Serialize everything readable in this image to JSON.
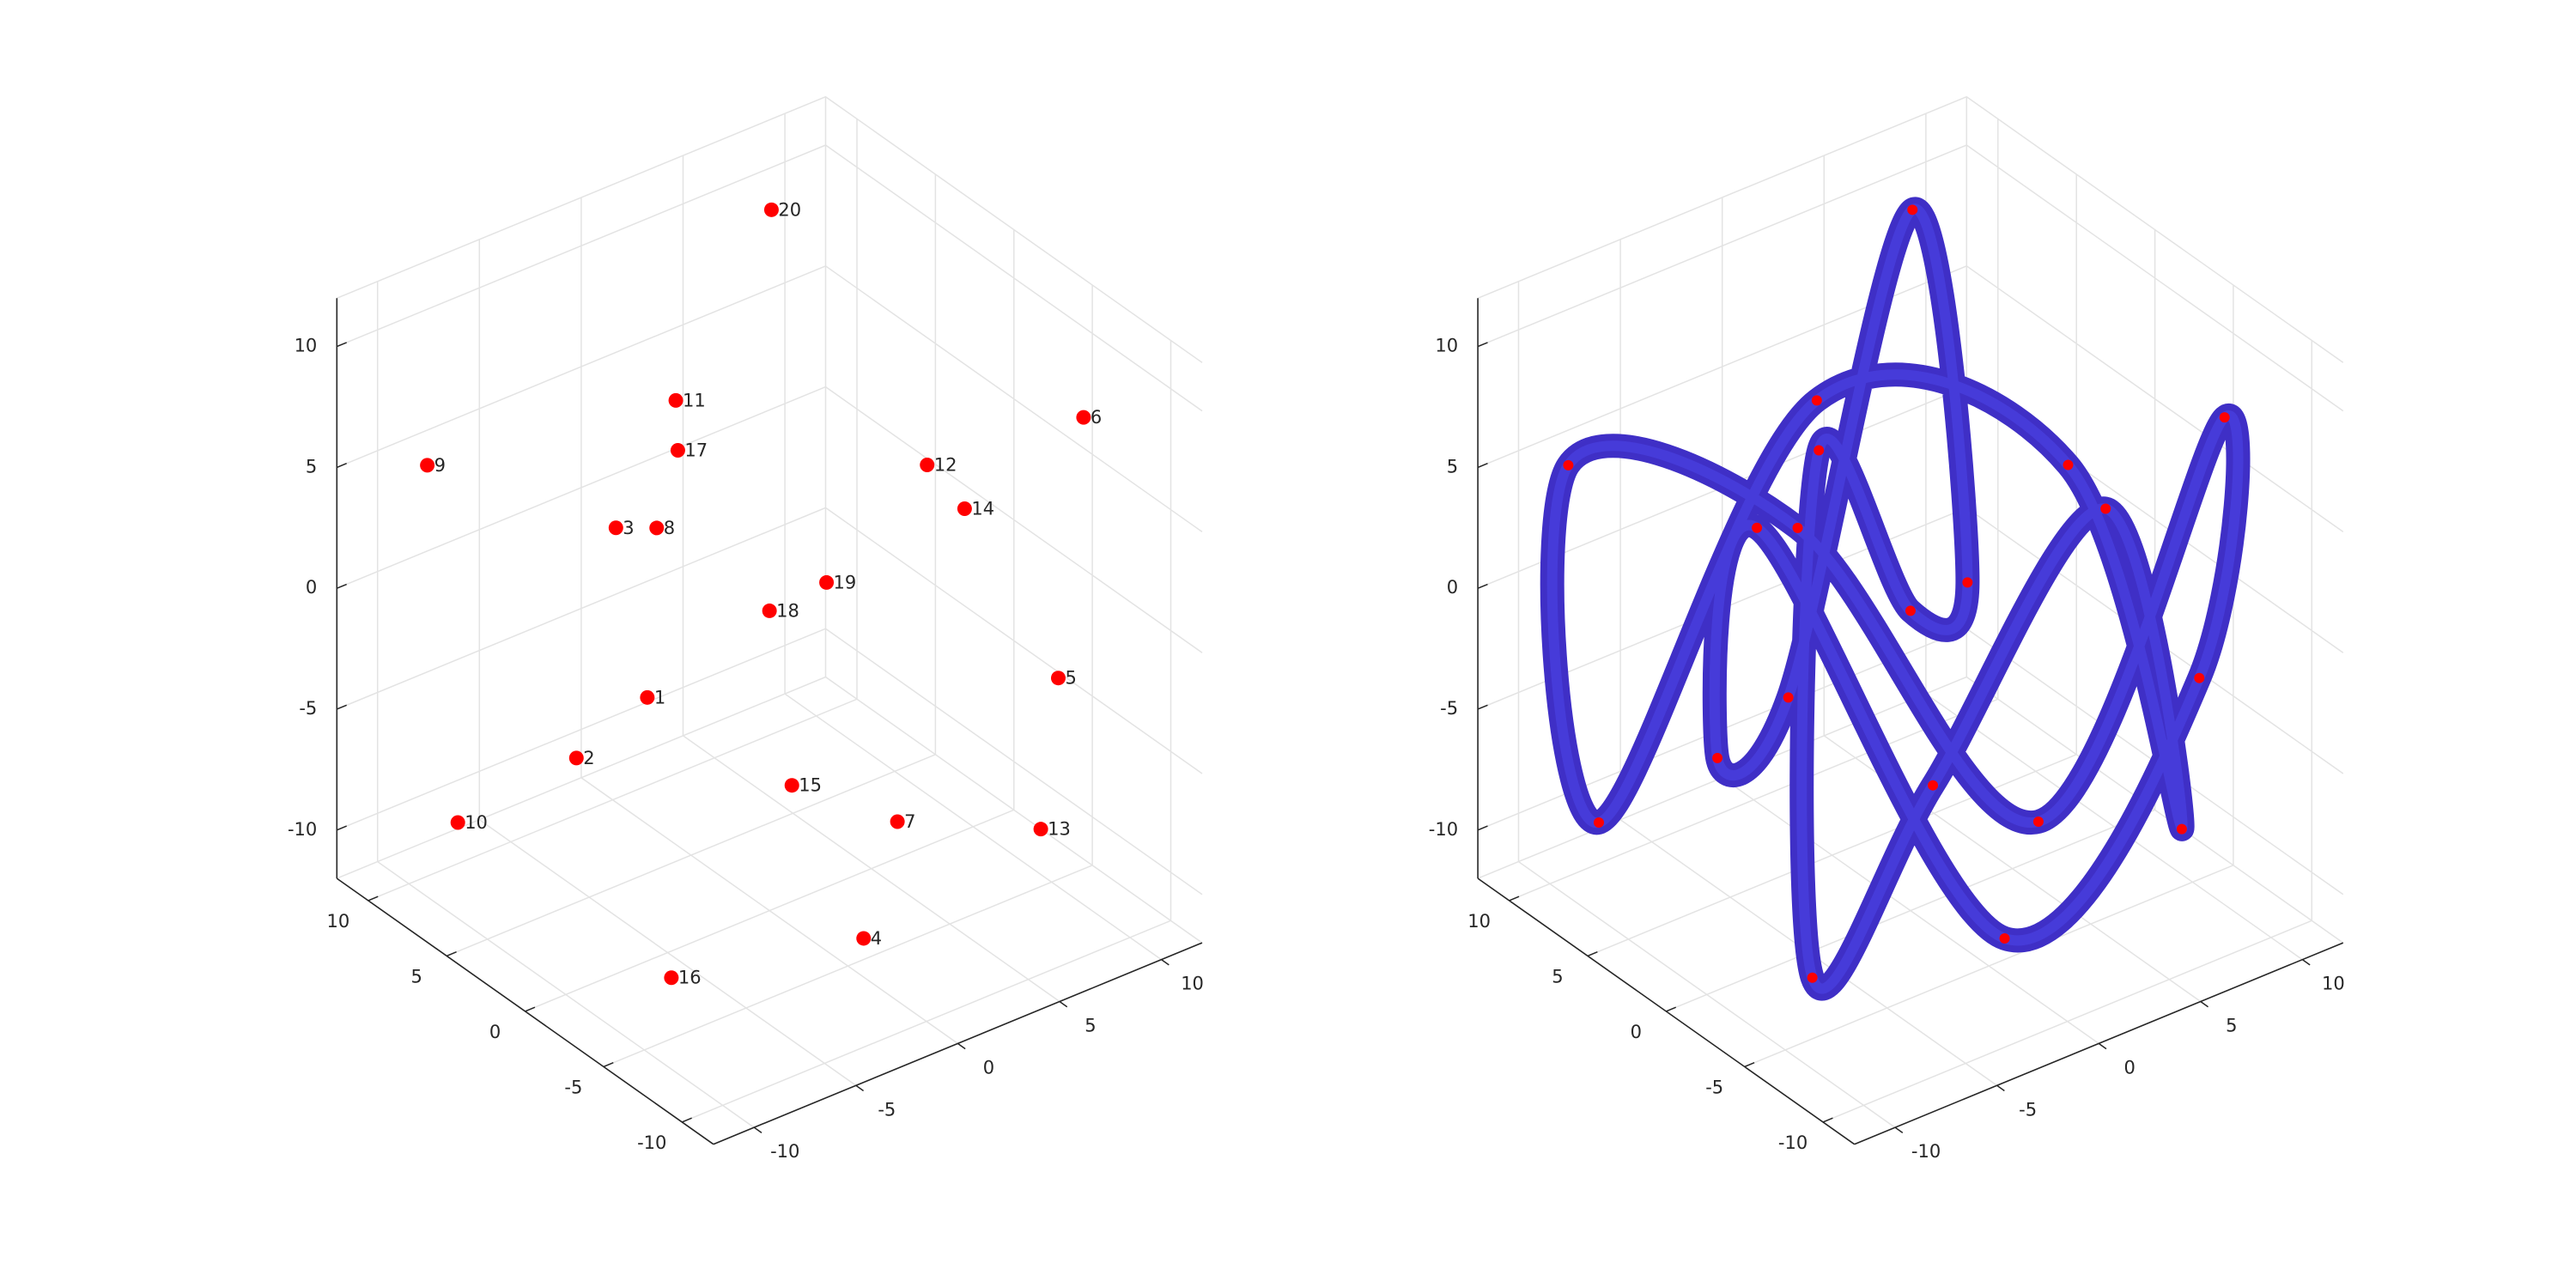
{
  "chart_data": [
    {
      "type": "scatter3",
      "x": [
        -6,
        -6.4,
        -6,
        0,
        11.1,
        10.8,
        3.2,
        -4,
        -9.1,
        -7.6,
        -4.6,
        6.2,
        8.7,
        6.5,
        1.1,
        -7.9,
        -4.5,
        0,
        2.8,
        7.8
      ],
      "y": [
        0,
        4,
        2,
        -6,
        -4,
        -6,
        -4,
        2,
        10,
        10,
        0,
        -2,
        -6,
        -4,
        0,
        -4,
        0,
        0,
        0,
        10
      ],
      "z": [
        -1.1,
        -5.3,
        5,
        -10.4,
        -4.4,
        7.4,
        -7.6,
        4.3,
        5,
        -10.3,
        10.7,
        5.2,
        -8.9,
        4.2,
        -7.2,
        -10.2,
        8.6,
        0.4,
        0.6,
        9.7
      ],
      "labels": [
        "1",
        "2",
        "3",
        "4",
        "5",
        "6",
        "7",
        "8",
        "9",
        "10",
        "11",
        "12",
        "13",
        "14",
        "15",
        "16",
        "17",
        "18",
        "19",
        "20"
      ],
      "color": "#ff0000",
      "xlim": [
        -12,
        12
      ],
      "ylim": [
        -12,
        12
      ],
      "zlim": [
        -12,
        12
      ],
      "xticks": [
        -10,
        -5,
        0,
        5,
        10
      ],
      "yticks": [
        -10,
        -5,
        0,
        5,
        10
      ],
      "zticks": [
        -10,
        -5,
        0,
        5,
        10
      ],
      "grid": true
    },
    {
      "type": "tube3",
      "x": [
        -6,
        -6.4,
        -6,
        0,
        11.1,
        10.8,
        3.2,
        -4,
        -9.1,
        -7.6,
        -4.6,
        6.2,
        8.7,
        6.5,
        1.1,
        -7.9,
        -4.5,
        0,
        2.8,
        7.8
      ],
      "y": [
        0,
        4,
        2,
        -6,
        -4,
        -6,
        -4,
        2,
        10,
        10,
        0,
        -2,
        -6,
        -4,
        0,
        -4,
        0,
        0,
        0,
        10
      ],
      "z": [
        -1.1,
        -5.3,
        5,
        -10.4,
        -4.4,
        7.4,
        -7.6,
        4.3,
        5,
        -10.3,
        10.7,
        5.2,
        -8.9,
        4.2,
        -7.2,
        -10.2,
        8.6,
        0.4,
        0.6,
        9.7
      ],
      "color": "#3f2fc6",
      "marker_color": "#ff0000",
      "xlim": [
        -12,
        12
      ],
      "ylim": [
        -12,
        12
      ],
      "zlim": [
        -12,
        12
      ],
      "xticks": [
        -10,
        -5,
        0,
        5,
        10
      ],
      "yticks": [
        -10,
        -5,
        0,
        5,
        10
      ],
      "zticks": [
        -10,
        -5,
        0,
        5,
        10
      ],
      "grid": true
    }
  ]
}
